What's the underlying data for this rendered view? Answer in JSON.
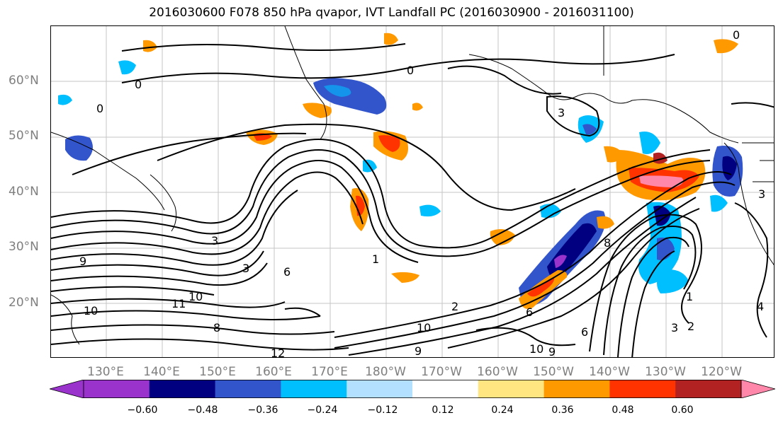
{
  "title": "2016030600 F078 850 hPa qvapor, IVT Landfall PC (2016030900 - 2016031100)",
  "map": {
    "lat_labels": [
      "60°N",
      "50°N",
      "40°N",
      "30°N",
      "20°N"
    ],
    "lon_labels": [
      "130°E",
      "140°E",
      "150°E",
      "160°E",
      "170°E",
      "180°W",
      "170°W",
      "160°W",
      "150°W",
      "140°W",
      "130°W",
      "120°W"
    ],
    "contour_labels": [
      "0",
      "0",
      "0",
      "3",
      "3",
      "3",
      "3",
      "2",
      "6",
      "6",
      "8",
      "9",
      "10",
      "10",
      "11",
      "12",
      "10",
      "10",
      "9",
      "9",
      "6",
      "8",
      "1",
      "4",
      "3",
      "2",
      "1",
      "0"
    ]
  },
  "colorbar": {
    "ticks": [
      "−0.60",
      "−0.48",
      "−0.36",
      "−0.24",
      "−0.12",
      "0.12",
      "0.24",
      "0.36",
      "0.48",
      "0.60"
    ],
    "colors": [
      "#9933cc",
      "#000080",
      "#3355cc",
      "#00bfff",
      "#b3e0ff",
      "#ffffff",
      "#ffe680",
      "#ff9900",
      "#ff3300",
      "#b22222",
      "#ff88aa",
      "#ff88aa"
    ]
  }
}
